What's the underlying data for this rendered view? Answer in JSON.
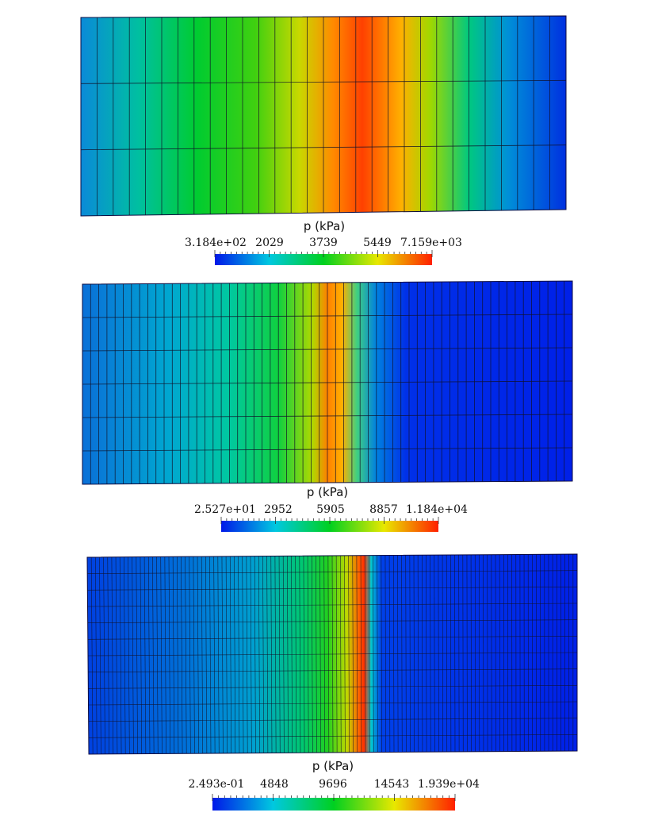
{
  "plots": [
    {
      "field_title": "p (kPa)",
      "colorbar_labels": [
        "3.184e+02",
        "2029",
        "3739",
        "5449",
        "7.159e+03"
      ],
      "min": 318.4,
      "max": 7159,
      "mesh_columns": 30,
      "mesh_rows": 3
    },
    {
      "field_title": "p (kPa)",
      "colorbar_labels": [
        "2.527e+01",
        "2952",
        "5905",
        "8857",
        "1.184e+04"
      ],
      "min": 25.27,
      "max": 11840,
      "mesh_columns": 60,
      "mesh_rows": 6
    },
    {
      "field_title": "p (kPa)",
      "colorbar_labels": [
        "2.493e-01",
        "4848",
        "9696",
        "14543",
        "1.939e+04"
      ],
      "min": 0.2493,
      "max": 19390,
      "mesh_columns": 120,
      "mesh_rows": 12
    }
  ],
  "colormap": [
    "#0018e8",
    "#00c8e0",
    "#00d020",
    "#e8e800",
    "#ff2000"
  ]
}
